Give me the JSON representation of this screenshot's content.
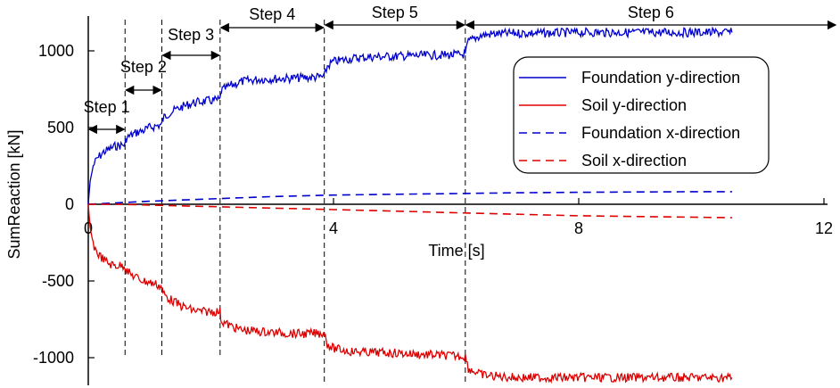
{
  "chart_data": {
    "type": "line",
    "title": "",
    "xlabel": "Time [s]",
    "ylabel": "SumReaction [kN]",
    "xlim": [
      0,
      12
    ],
    "ylim": [
      -1200,
      1200
    ],
    "x_ticks": [
      {
        "value": 0,
        "label": "0"
      },
      {
        "value": 4,
        "label": "4"
      },
      {
        "value": 8,
        "label": "8"
      },
      {
        "value": 12,
        "label": "12"
      }
    ],
    "y_ticks": [
      {
        "value": 1000,
        "label": "1000"
      },
      {
        "value": 500,
        "label": "500"
      },
      {
        "value": 0,
        "label": "0"
      },
      {
        "value": -500,
        "label": "-500"
      },
      {
        "value": -1000,
        "label": "-1000"
      }
    ],
    "grid": false,
    "legend_position": "right",
    "step_boundaries": [
      0.6,
      1.2,
      2.15,
      3.85,
      6.15
    ],
    "steps": [
      {
        "label": "Step 1",
        "start": 0,
        "end": 0.6
      },
      {
        "label": "Step 2",
        "start": 0.6,
        "end": 1.2
      },
      {
        "label": "Step 3",
        "start": 1.2,
        "end": 2.15
      },
      {
        "label": "Step 4",
        "start": 2.15,
        "end": 3.85
      },
      {
        "label": "Step 5",
        "start": 3.85,
        "end": 6.15
      },
      {
        "label": "Step 6",
        "start": 6.15,
        "end": 12.1
      }
    ],
    "series": [
      {
        "name": "Foundation y-direction",
        "color": "#0000cc",
        "style": "solid",
        "x": [
          0,
          0.03,
          0.08,
          0.15,
          0.25,
          0.35,
          0.45,
          0.55,
          0.6,
          0.62,
          0.7,
          0.8,
          0.9,
          1.0,
          1.1,
          1.2,
          1.22,
          1.3,
          1.5,
          1.7,
          1.85,
          2.0,
          2.15,
          2.17,
          2.3,
          2.5,
          2.8,
          3.2,
          3.5,
          3.85,
          3.9,
          4.0,
          4.3,
          4.6,
          5.0,
          5.5,
          6.1,
          6.15,
          6.2,
          6.4,
          6.6,
          7.0,
          7.5,
          8.0,
          8.5,
          9.0,
          9.5,
          10.0,
          10.5
        ],
        "values": [
          0,
          150,
          250,
          300,
          340,
          360,
          380,
          385,
          390,
          430,
          450,
          470,
          480,
          500,
          510,
          520,
          560,
          590,
          630,
          660,
          670,
          675,
          680,
          740,
          770,
          800,
          815,
          820,
          825,
          830,
          900,
          930,
          950,
          960,
          965,
          970,
          975,
          980,
          1060,
          1100,
          1110,
          1115,
          1115,
          1120,
          1120,
          1120,
          1120,
          1120,
          1120
        ]
      },
      {
        "name": "Soil y-direction",
        "color": "#dd0000",
        "style": "solid",
        "x": [
          0,
          0.03,
          0.08,
          0.15,
          0.25,
          0.35,
          0.45,
          0.55,
          0.6,
          0.62,
          0.7,
          0.8,
          0.9,
          1.0,
          1.1,
          1.2,
          1.22,
          1.3,
          1.5,
          1.7,
          1.85,
          2.0,
          2.15,
          2.17,
          2.3,
          2.5,
          2.8,
          3.2,
          3.5,
          3.85,
          3.9,
          4.0,
          4.3,
          4.6,
          5.0,
          5.5,
          6.1,
          6.15,
          6.2,
          6.4,
          6.6,
          7.0,
          7.5,
          8.0,
          8.5,
          9.0,
          9.5,
          10.0,
          10.5
        ],
        "values": [
          0,
          -150,
          -260,
          -320,
          -360,
          -390,
          -400,
          -400,
          -400,
          -430,
          -460,
          -480,
          -500,
          -510,
          -520,
          -540,
          -580,
          -610,
          -660,
          -690,
          -700,
          -700,
          -700,
          -760,
          -790,
          -820,
          -830,
          -840,
          -845,
          -840,
          -910,
          -940,
          -960,
          -965,
          -970,
          -980,
          -990,
          -990,
          -1070,
          -1110,
          -1120,
          -1130,
          -1130,
          -1130,
          -1130,
          -1130,
          -1130,
          -1130,
          -1130
        ]
      },
      {
        "name": "Foundation x-direction",
        "color": "#0000cc",
        "style": "dashed",
        "x": [
          0,
          0.5,
          1.0,
          2.0,
          3.0,
          4.0,
          5.0,
          6.0,
          7.0,
          8.0,
          9.0,
          10.0,
          10.5
        ],
        "values": [
          0,
          10,
          20,
          35,
          50,
          60,
          65,
          70,
          75,
          78,
          80,
          82,
          82
        ]
      },
      {
        "name": "Soil x-direction",
        "color": "#dd0000",
        "style": "dashed",
        "x": [
          0,
          0.5,
          1.0,
          2.0,
          3.0,
          4.0,
          5.0,
          6.0,
          7.0,
          8.0,
          9.0,
          10.0,
          10.5
        ],
        "values": [
          0,
          0,
          -5,
          -15,
          -25,
          -35,
          -45,
          -55,
          -65,
          -75,
          -80,
          -85,
          -88
        ]
      }
    ]
  }
}
